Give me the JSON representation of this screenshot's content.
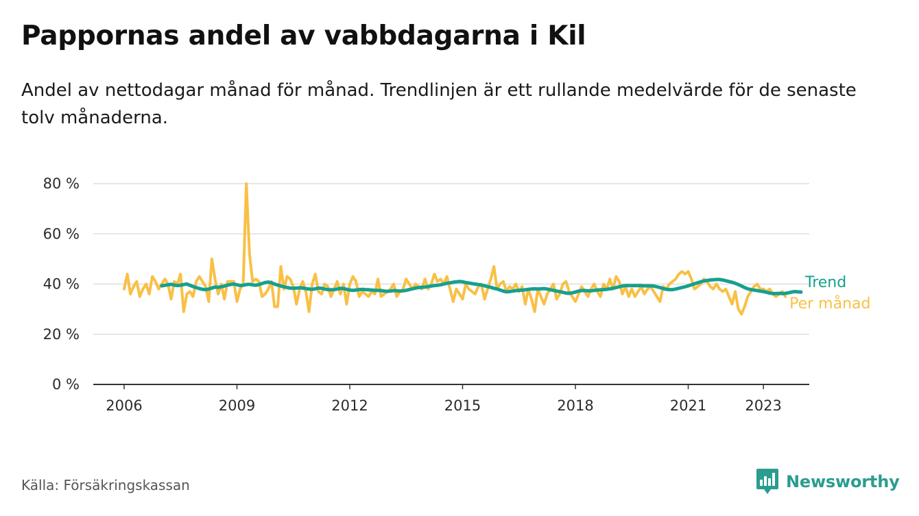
{
  "header": {
    "title": "Pappornas andel av vabbdagarna i Kil",
    "subtitle": "Andel av nettodagar månad för månad. Trendlinjen är ett rullande medelvärde för de senaste tolv månaderna."
  },
  "footer": {
    "source": "Källa: Försäkringskassan",
    "brand": "Newsworthy"
  },
  "colors": {
    "monthly": "#f9c046",
    "trend": "#16a08e",
    "brand": "#2a9d8f",
    "grid": "#dddddd",
    "axis": "#333333"
  },
  "chart_data": {
    "type": "line",
    "title": "Pappornas andel av vabbdagarna i Kil",
    "subtitle": "Andel av nettodagar månad för månad. Trendlinjen är ett rullande medelvärde för de senaste tolv månaderna.",
    "x_ticks": [
      "2006",
      "2009",
      "2012",
      "2015",
      "2018",
      "2021",
      "2023"
    ],
    "x_range": [
      "2006-01",
      "2023-06"
    ],
    "y_ticks": [
      0,
      20,
      40,
      60,
      80
    ],
    "y_tick_labels": [
      "0 %",
      "20 %",
      "40 %",
      "60 %",
      "80 %"
    ],
    "ylim": [
      0,
      80
    ],
    "grid": true,
    "series": [
      {
        "name": "Per månad",
        "start": "2006-01",
        "values": [
          38,
          44,
          36,
          39,
          41,
          35,
          38,
          40,
          36,
          43,
          41,
          38,
          40,
          42,
          40,
          34,
          41,
          40,
          44,
          29,
          36,
          37,
          35,
          41,
          43,
          41,
          39,
          33,
          50,
          42,
          36,
          40,
          34,
          41,
          41,
          41,
          33,
          38,
          40,
          80,
          52,
          41,
          42,
          41,
          35,
          36,
          38,
          41,
          31,
          31,
          47,
          38,
          43,
          42,
          39,
          32,
          38,
          41,
          37,
          29,
          40,
          44,
          37,
          36,
          40,
          39,
          35,
          38,
          41,
          36,
          40,
          32,
          40,
          43,
          41,
          35,
          37,
          36,
          35,
          37,
          36,
          42,
          35,
          36,
          37,
          38,
          40,
          35,
          37,
          38,
          42,
          40,
          38,
          40,
          39,
          38,
          42,
          38,
          40,
          44,
          41,
          42,
          40,
          43,
          38,
          33,
          38,
          36,
          34,
          40,
          38,
          37,
          36,
          39,
          40,
          34,
          38,
          42,
          47,
          38,
          40,
          41,
          37,
          39,
          38,
          40,
          37,
          39,
          32,
          38,
          34,
          29,
          38,
          35,
          32,
          36,
          38,
          40,
          34,
          36,
          40,
          41,
          37,
          35,
          33,
          36,
          39,
          37,
          35,
          38,
          40,
          37,
          35,
          40,
          38,
          42,
          38,
          43,
          41,
          36,
          39,
          35,
          38,
          35,
          37,
          39,
          36,
          38,
          39,
          37,
          35,
          33,
          39,
          38,
          40,
          41,
          42,
          44,
          45,
          44,
          45,
          42,
          38,
          39,
          40,
          42,
          41,
          39,
          38,
          40,
          38,
          37,
          38,
          35,
          32,
          37,
          30,
          28,
          31,
          35,
          37,
          39,
          40,
          38,
          38,
          37,
          38,
          36,
          35,
          36,
          37,
          35
        ]
      },
      {
        "name": "Trend",
        "start": "2007-01",
        "values": [
          39.3,
          39.5,
          39.7,
          39.9,
          39.6,
          39.4,
          39.5,
          39.8,
          40.0,
          39.5,
          39.0,
          38.6,
          38.2,
          37.9,
          37.8,
          38.0,
          38.4,
          38.8,
          38.7,
          38.9,
          39.2,
          39.6,
          39.8,
          40.0,
          39.7,
          39.4,
          39.5,
          39.8,
          39.9,
          39.7,
          39.5,
          39.8,
          40.2,
          40.6,
          40.8,
          40.5,
          40.0,
          39.6,
          39.2,
          38.9,
          38.6,
          38.4,
          38.3,
          38.4,
          38.5,
          38.4,
          38.2,
          38.0,
          37.9,
          38.1,
          38.4,
          38.3,
          38.0,
          37.8,
          37.7,
          37.8,
          38.0,
          38.3,
          38.2,
          37.9,
          37.6,
          37.5,
          37.6,
          37.8,
          37.9,
          37.8,
          37.7,
          37.6,
          37.5,
          37.5,
          37.4,
          37.2,
          37.1,
          37.2,
          37.4,
          37.3,
          37.2,
          37.3,
          37.5,
          37.8,
          38.1,
          38.4,
          38.6,
          38.7,
          38.8,
          39.0,
          39.2,
          39.4,
          39.5,
          39.7,
          40.0,
          40.3,
          40.5,
          40.7,
          40.9,
          41.0,
          40.9,
          40.6,
          40.4,
          40.2,
          40.0,
          39.8,
          39.6,
          39.3,
          39.0,
          38.7,
          38.3,
          38.0,
          37.6,
          37.2,
          36.9,
          37.0,
          37.2,
          37.4,
          37.5,
          37.6,
          37.7,
          37.9,
          38.0,
          38.1,
          38.0,
          38.1,
          38.2,
          38.0,
          37.7,
          37.5,
          37.2,
          37.0,
          36.7,
          36.4,
          36.3,
          36.5,
          36.8,
          37.2,
          37.4,
          37.4,
          37.3,
          37.3,
          37.5,
          37.6,
          37.7,
          37.8,
          37.9,
          38.1,
          38.3,
          38.6,
          38.9,
          39.2,
          39.4,
          39.4,
          39.4,
          39.4,
          39.4,
          39.4,
          39.3,
          39.3,
          39.3,
          39.2,
          38.9,
          38.6,
          38.2,
          37.9,
          37.8,
          37.8,
          38.0,
          38.3,
          38.6,
          38.9,
          39.3,
          39.7,
          40.1,
          40.5,
          40.9,
          41.2,
          41.4,
          41.6,
          41.7,
          41.8,
          41.8,
          41.6,
          41.3,
          41.0,
          40.7,
          40.3,
          39.8,
          39.2,
          38.6,
          38.1,
          37.8,
          37.6,
          37.4,
          37.2,
          37.0,
          36.7,
          36.4,
          36.2,
          36.2,
          36.3,
          36.2,
          36.3,
          36.5,
          36.8,
          37.0,
          36.9,
          36.8
        ]
      }
    ]
  }
}
